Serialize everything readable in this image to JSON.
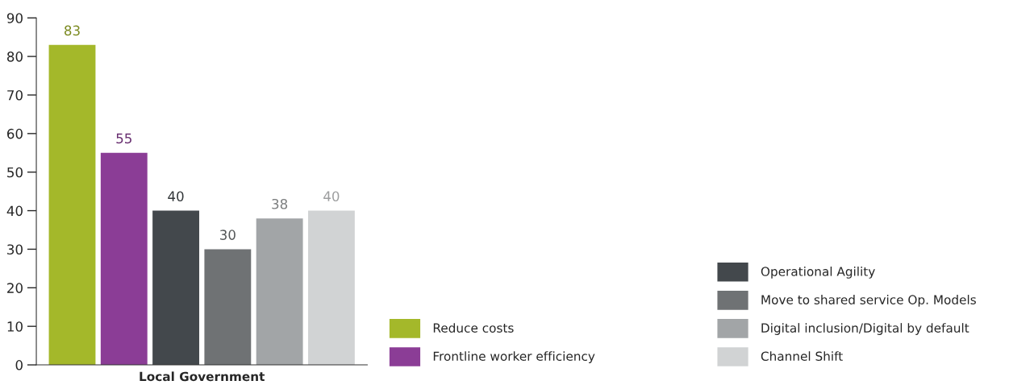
{
  "chart_data": {
    "type": "bar",
    "categories": [
      "Local Government"
    ],
    "series": [
      {
        "name": "Reduce costs",
        "color": "#a4b82a",
        "values": [
          83
        ]
      },
      {
        "name": "Frontline worker efficiency",
        "color": "#8b3d96",
        "values": [
          55
        ]
      },
      {
        "name": "Operational Agility",
        "color": "#43484c",
        "values": [
          40
        ]
      },
      {
        "name": "Move to shared service Op. Models",
        "color": "#6f7274",
        "values": [
          30
        ]
      },
      {
        "name": "Digital inclusion/Digital by default",
        "color": "#a2a5a7",
        "values": [
          38
        ]
      },
      {
        "name": "Channel Shift",
        "color": "#d1d3d4",
        "values": [
          40
        ]
      }
    ],
    "ylim": [
      0,
      90
    ],
    "yticks": [
      0,
      10,
      20,
      30,
      40,
      50,
      60,
      70,
      80,
      90
    ],
    "data_labels": true,
    "grid": false,
    "legend": "right"
  }
}
